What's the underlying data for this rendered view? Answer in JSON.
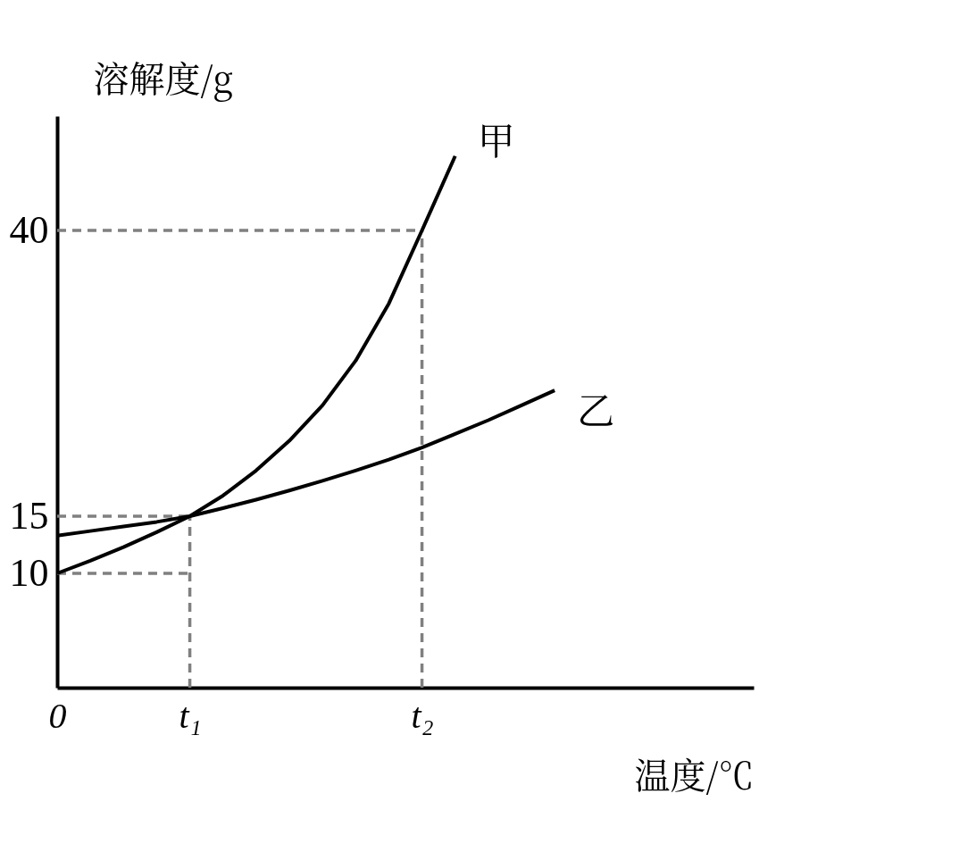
{
  "chart_data": {
    "type": "line",
    "xlabel": "温度/℃",
    "ylabel": "溶解度/g",
    "categories": [
      "0",
      null,
      null,
      null,
      "t₁",
      null,
      null,
      null,
      null,
      null,
      null,
      "t₂",
      null,
      null,
      null,
      null
    ],
    "ylim": [
      0,
      50
    ],
    "yticks": [
      10,
      15,
      40
    ],
    "series": [
      {
        "name": "甲",
        "color": "#000000",
        "values": [
          10,
          11.1,
          12.3,
          13.6,
          15,
          16.8,
          19,
          21.6,
          24.7,
          28.6,
          33.6,
          40,
          46.5,
          null,
          null,
          null
        ]
      },
      {
        "name": "乙",
        "color": "#000000",
        "values": [
          13.3,
          13.7,
          14.1,
          14.5,
          15,
          15.7,
          16.45,
          17.25,
          18.1,
          19,
          19.95,
          21,
          22.2,
          23.4,
          24.7,
          26
        ]
      }
    ],
    "ref_lines": [
      {
        "axis": "y",
        "value": 10,
        "color": "#808080",
        "line_style": "dashed"
      },
      {
        "axis": "y",
        "value": 15,
        "color": "#808080",
        "line_style": "dashed"
      },
      {
        "axis": "y",
        "value": 40,
        "color": "#808080",
        "line_style": "dashed"
      },
      {
        "axis": "x",
        "value": "t₁",
        "color": "#808080",
        "line_style": "dashed"
      },
      {
        "axis": "x",
        "value": "t₂",
        "color": "#808080",
        "line_style": "dashed"
      }
    ],
    "grid": false,
    "marker": "none",
    "line_style": "solid"
  }
}
